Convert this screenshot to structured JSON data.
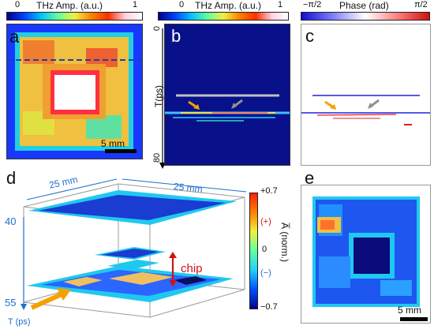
{
  "colorbars": {
    "amp_a": {
      "min": "0",
      "max": "1",
      "title": "THz Amp. (a.u.)"
    },
    "amp_b": {
      "min": "0",
      "max": "1",
      "title": "THz Amp. (a.u.)"
    },
    "phase": {
      "min": "−π/2",
      "max": "π/2",
      "title": "Phase (rad)"
    }
  },
  "panels": {
    "a": {
      "letter": "a",
      "scale": "5 mm"
    },
    "b": {
      "letter": "b",
      "axis_label": "T(ps)",
      "tick_top": "0",
      "tick_bottom": "80"
    },
    "c": {
      "letter": "c"
    },
    "d": {
      "letter": "d",
      "dim_left": "25 mm",
      "dim_right": "25 mm",
      "t_top": "40",
      "t_bottom": "55",
      "t_axis": "T (ps)",
      "chip": "chip",
      "plus": "(+)",
      "minus": "(−)"
    },
    "e": {
      "letter": "e",
      "scale": "5 mm"
    }
  },
  "colorbar_d": {
    "top": "+0.7",
    "mid": "0",
    "bottom": "−0.7",
    "label": "A̅ (norm.)"
  },
  "colors": {
    "jet_dark": "#00008f",
    "jet_blue": "#0050ff",
    "jet_cyan": "#20d0ff",
    "jet_yellow": "#f0e040",
    "jet_red": "#e02010",
    "arrow_orange": "#f5a200",
    "arrow_gray": "#909090",
    "chip_red": "#d41010"
  }
}
